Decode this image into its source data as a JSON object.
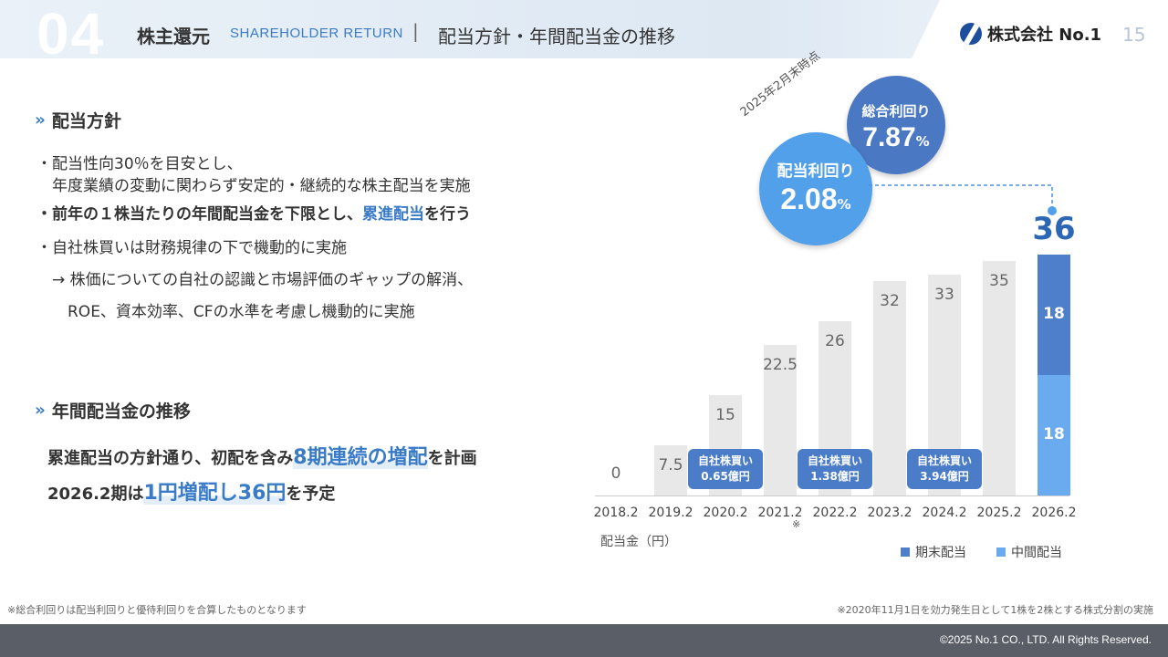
{
  "header": {
    "section_number": "04",
    "section_jp": "株主還元",
    "section_en": "SHAREHOLDER RETURN",
    "separator": "|",
    "title": "配当方針・年間配当金の推移",
    "logo_text": "株式会社 No.1",
    "page_number": "15"
  },
  "policy": {
    "heading": "配当方針",
    "lines": [
      "・配当性向30％を目安とし、",
      "　年度業績の変動に関わらず安定的・継続的な株主配当を実施",
      "・自社株買いは財務規律の下で機動的に実施",
      "　→ 株価についての自社の認識と市場評価のギャップの解消、",
      "　　ROE、資本効率、CFの水準を考慮し機動的に実施"
    ],
    "bold_line_pre": "・前年の１株当たりの年間配当金を下限とし、",
    "bold_line_accent": "累進配当",
    "bold_line_post": "を行う"
  },
  "trend": {
    "heading": "年間配当金の推移",
    "line1_pre": "累進配当の方針通り、初配を含み",
    "line1_accent": "8期連続の増配",
    "line1_post": "を計画",
    "line2_pre": "2026.2期は",
    "line2_accent": "1円増配し36円",
    "line2_post": "を予定"
  },
  "yields": {
    "as_of": "2025年2月末時点",
    "total_label": "総合利回り",
    "total_value": "7.87",
    "total_unit": "%",
    "div_label": "配当利回り",
    "div_value": "2.08",
    "div_unit": "%"
  },
  "chart_data": {
    "type": "bar",
    "categories": [
      "2018.2",
      "2019.2",
      "2020.2",
      "2021.2",
      "2022.2",
      "2023.2",
      "2024.2",
      "2025.2",
      "2026.2"
    ],
    "values": [
      0,
      7.5,
      15,
      22.5,
      26,
      32,
      33,
      35,
      36
    ],
    "value_labels": [
      "0",
      "7.5",
      "15",
      "22.5",
      "26",
      "32",
      "33",
      "35",
      "36"
    ],
    "final_breakdown": {
      "interim": 18,
      "year_end": 18,
      "interim_label": "18",
      "year_end_label": "18"
    },
    "ylabel": "配当金（円）",
    "ylim": [
      0,
      36
    ],
    "category_note": "※",
    "legend": [
      {
        "name": "期末配当",
        "color": "#4e7fca"
      },
      {
        "name": "中間配当",
        "color": "#6aabf0"
      }
    ],
    "buybacks": [
      {
        "category": "2020.2",
        "line1": "自社株買い",
        "line2": "0.65億円"
      },
      {
        "category": "2022.2",
        "line1": "自社株買い",
        "line2": "1.38億円"
      },
      {
        "category": "2024.2",
        "line1": "自社株買い",
        "line2": "3.94億円"
      }
    ],
    "grid": false
  },
  "footnotes": {
    "left": "※総合利回りは配当利回りと優待利回りを合算したものとなります",
    "right": "※2020年11月1日を効力発生日として1株を2株とする株式分割の実施"
  },
  "footer": {
    "copyright": "©2025 No.1 CO., LTD. All Rights Reserved."
  },
  "colors": {
    "accent": "#3a7bc8",
    "bar_gray": "#e8e8e8",
    "year_end": "#4e7fca",
    "interim": "#6aabf0",
    "footer": "#5a5e66"
  }
}
